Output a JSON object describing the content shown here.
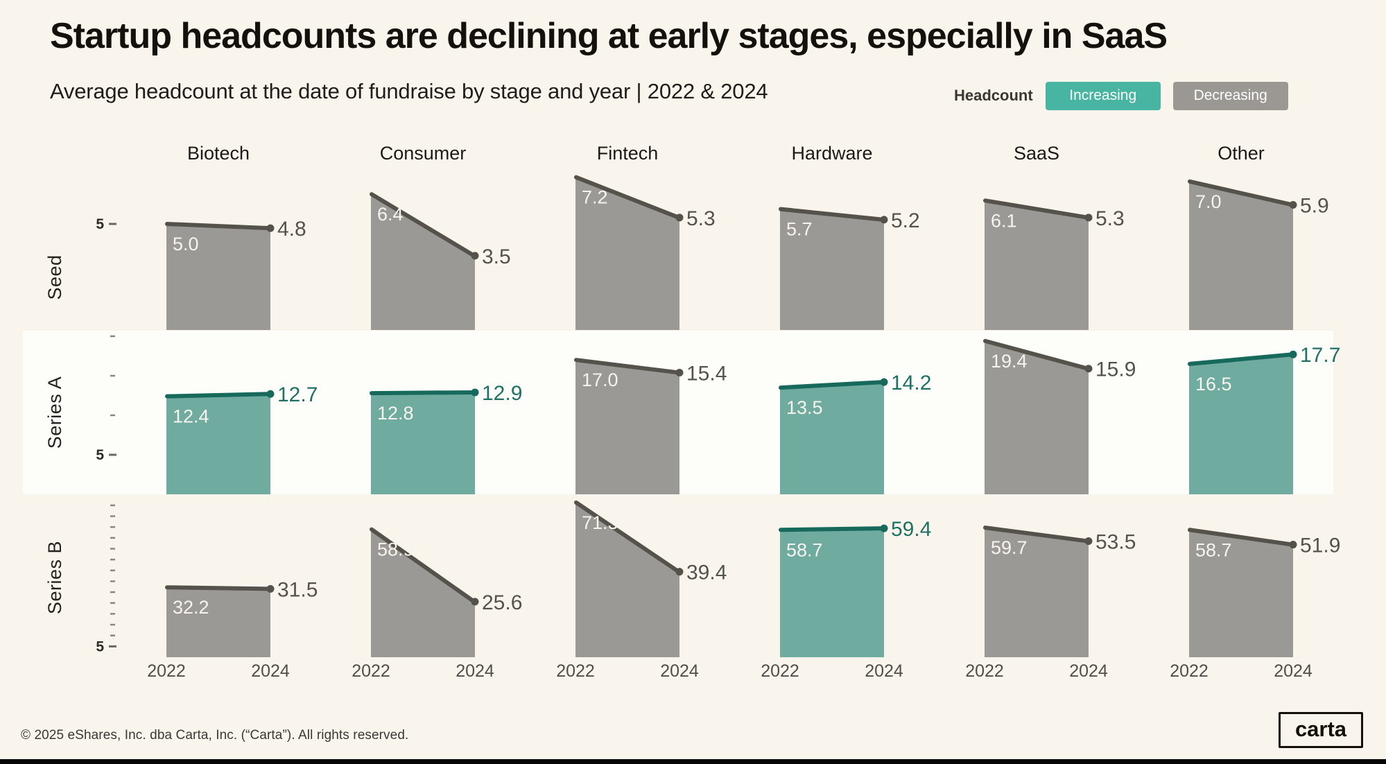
{
  "title": "Startup headcounts are declining at early stages, especially in SaaS",
  "subtitle": "Average headcount at the date of fundraise by stage and year | 2022 & 2024",
  "legend": {
    "label": "Headcount",
    "increasing": "Increasing",
    "decreasing": "Decreasing"
  },
  "footer": "© 2025 eShares, Inc. dba Carta, Inc. (“Carta”). All rights reserved.",
  "logo_text": "carta",
  "colors": {
    "background": "#f9f5ed",
    "series_a_band": "#fdfdfa",
    "increasing_fill": "#6fab9f",
    "increasing_line": "#17695c",
    "increasing_label": "#1f7163",
    "decreasing_fill": "#9b9995",
    "decreasing_line": "#55524c",
    "decreasing_label": "#55524c",
    "inside_label": "#f7f4ee",
    "badge_increasing": "#47b5a1",
    "badge_decreasing": "#9b9894"
  },
  "chart_data": {
    "type": "area",
    "x": [
      2022,
      2024
    ],
    "sectors": [
      "Biotech",
      "Consumer",
      "Fintech",
      "Hardware",
      "SaaS",
      "Other"
    ],
    "axis": {
      "labeled_tick": 5,
      "tick_interval": 5,
      "grid": false
    },
    "legend_position": "top-right",
    "stages": [
      {
        "label": "Seed",
        "ylim": [
          0,
          9
        ],
        "cells": [
          {
            "sector": "Biotech",
            "values": [
              5.0,
              4.8
            ],
            "trend": "decreasing"
          },
          {
            "sector": "Consumer",
            "values": [
              6.4,
              3.5
            ],
            "trend": "decreasing"
          },
          {
            "sector": "Fintech",
            "values": [
              7.2,
              5.3
            ],
            "trend": "decreasing"
          },
          {
            "sector": "Hardware",
            "values": [
              5.7,
              5.2
            ],
            "trend": "decreasing"
          },
          {
            "sector": "SaaS",
            "values": [
              6.1,
              5.3
            ],
            "trend": "decreasing"
          },
          {
            "sector": "Other",
            "values": [
              7.0,
              5.9
            ],
            "trend": "decreasing"
          }
        ]
      },
      {
        "label": "Series A",
        "ylim": [
          0,
          21
        ],
        "cells": [
          {
            "sector": "Biotech",
            "values": [
              12.4,
              12.7
            ],
            "trend": "increasing"
          },
          {
            "sector": "Consumer",
            "values": [
              12.8,
              12.9
            ],
            "trend": "increasing"
          },
          {
            "sector": "Fintech",
            "values": [
              17.0,
              15.4
            ],
            "trend": "decreasing"
          },
          {
            "sector": "Hardware",
            "values": [
              13.5,
              14.2
            ],
            "trend": "increasing"
          },
          {
            "sector": "SaaS",
            "values": [
              19.4,
              15.9
            ],
            "trend": "decreasing"
          },
          {
            "sector": "Other",
            "values": [
              16.5,
              17.7
            ],
            "trend": "increasing"
          }
        ]
      },
      {
        "label": "Series B",
        "ylim": [
          0,
          75
        ],
        "cells": [
          {
            "sector": "Biotech",
            "values": [
              32.2,
              31.5
            ],
            "trend": "decreasing"
          },
          {
            "sector": "Consumer",
            "values": [
              58.9,
              25.6
            ],
            "trend": "decreasing"
          },
          {
            "sector": "Fintech",
            "values": [
              71.3,
              39.4
            ],
            "trend": "decreasing"
          },
          {
            "sector": "Hardware",
            "values": [
              58.7,
              59.4
            ],
            "trend": "increasing"
          },
          {
            "sector": "SaaS",
            "values": [
              59.7,
              53.5
            ],
            "trend": "decreasing"
          },
          {
            "sector": "Other",
            "values": [
              58.7,
              51.9
            ],
            "trend": "decreasing"
          }
        ]
      }
    ]
  }
}
